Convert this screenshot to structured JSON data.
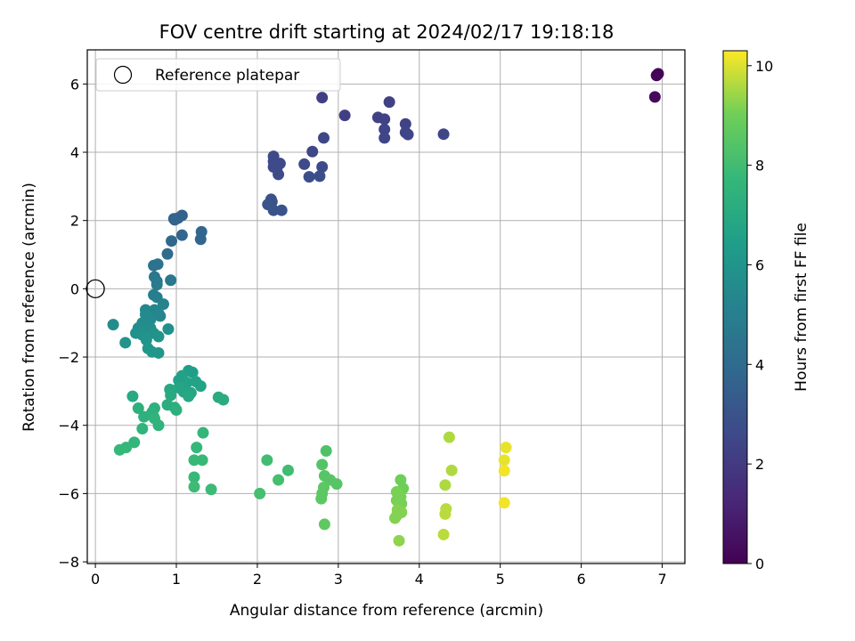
{
  "chart_data": {
    "type": "scatter",
    "title": "FOV centre drift starting at 2024/02/17 19:18:18",
    "xlabel": "Angular distance from reference (arcmin)",
    "ylabel": "Rotation from reference (arcmin)",
    "xlim": [
      -0.1,
      7.28
    ],
    "ylim": [
      -8.05,
      7.0
    ],
    "xticks": [
      0,
      1,
      2,
      3,
      4,
      5,
      6,
      7
    ],
    "yticks": [
      -8,
      -6,
      -4,
      -2,
      0,
      2,
      4,
      6
    ],
    "grid": true,
    "legend": {
      "position": "top-left",
      "entries": [
        "Reference platepar"
      ]
    },
    "reference_point": {
      "label": "Reference platepar",
      "x": 0,
      "y": 0
    },
    "colorbar": {
      "label": "Hours from first FF file",
      "range": [
        0,
        10.3
      ],
      "ticks": [
        0,
        2,
        4,
        6,
        8,
        10
      ],
      "colormap": "viridis"
    },
    "points": [
      {
        "x": 6.95,
        "y": 6.3,
        "h": 0.05
      },
      {
        "x": 6.93,
        "y": 6.25,
        "h": 0.1
      },
      {
        "x": 6.91,
        "y": 5.62,
        "h": 0.3
      },
      {
        "x": 2.8,
        "y": 5.6,
        "h": 2.2
      },
      {
        "x": 3.63,
        "y": 5.47,
        "h": 2.3
      },
      {
        "x": 3.08,
        "y": 5.08,
        "h": 2.2
      },
      {
        "x": 3.49,
        "y": 5.02,
        "h": 2.3
      },
      {
        "x": 3.57,
        "y": 4.97,
        "h": 2.3
      },
      {
        "x": 3.83,
        "y": 4.83,
        "h": 2.3
      },
      {
        "x": 3.57,
        "y": 4.67,
        "h": 2.4
      },
      {
        "x": 3.83,
        "y": 4.58,
        "h": 2.4
      },
      {
        "x": 3.86,
        "y": 4.52,
        "h": 2.4
      },
      {
        "x": 3.57,
        "y": 4.42,
        "h": 2.4
      },
      {
        "x": 4.3,
        "y": 4.53,
        "h": 2.4
      },
      {
        "x": 2.82,
        "y": 4.42,
        "h": 2.5
      },
      {
        "x": 2.68,
        "y": 4.02,
        "h": 2.5
      },
      {
        "x": 2.2,
        "y": 3.88,
        "h": 2.6
      },
      {
        "x": 2.2,
        "y": 3.73,
        "h": 2.6
      },
      {
        "x": 2.28,
        "y": 3.67,
        "h": 2.6
      },
      {
        "x": 2.58,
        "y": 3.65,
        "h": 2.6
      },
      {
        "x": 2.2,
        "y": 3.57,
        "h": 2.6
      },
      {
        "x": 2.8,
        "y": 3.57,
        "h": 2.7
      },
      {
        "x": 2.24,
        "y": 3.52,
        "h": 2.7
      },
      {
        "x": 2.26,
        "y": 3.35,
        "h": 2.7
      },
      {
        "x": 2.64,
        "y": 3.28,
        "h": 2.8
      },
      {
        "x": 2.77,
        "y": 3.3,
        "h": 2.8
      },
      {
        "x": 2.17,
        "y": 2.62,
        "h": 2.9
      },
      {
        "x": 2.18,
        "y": 2.55,
        "h": 2.9
      },
      {
        "x": 2.13,
        "y": 2.47,
        "h": 3.0
      },
      {
        "x": 2.2,
        "y": 2.3,
        "h": 3.0
      },
      {
        "x": 2.3,
        "y": 2.3,
        "h": 3.0
      },
      {
        "x": 1.07,
        "y": 2.15,
        "h": 3.6
      },
      {
        "x": 0.97,
        "y": 2.05,
        "h": 3.7
      },
      {
        "x": 1.02,
        "y": 2.07,
        "h": 3.7
      },
      {
        "x": 0.98,
        "y": 2.02,
        "h": 3.7
      },
      {
        "x": 1.31,
        "y": 1.67,
        "h": 3.8
      },
      {
        "x": 1.07,
        "y": 1.57,
        "h": 3.8
      },
      {
        "x": 1.3,
        "y": 1.45,
        "h": 3.8
      },
      {
        "x": 0.94,
        "y": 1.4,
        "h": 3.9
      },
      {
        "x": 0.89,
        "y": 1.02,
        "h": 4.0
      },
      {
        "x": 0.77,
        "y": 0.72,
        "h": 4.4
      },
      {
        "x": 0.72,
        "y": 0.68,
        "h": 4.4
      },
      {
        "x": 0.73,
        "y": 0.35,
        "h": 4.6
      },
      {
        "x": 0.93,
        "y": 0.25,
        "h": 4.6
      },
      {
        "x": 0.76,
        "y": 0.22,
        "h": 4.7
      },
      {
        "x": 0.76,
        "y": 0.12,
        "h": 4.8
      },
      {
        "x": 0.72,
        "y": -0.18,
        "h": 5.0
      },
      {
        "x": 0.76,
        "y": -0.25,
        "h": 5.0
      },
      {
        "x": 0.84,
        "y": -0.45,
        "h": 5.2
      },
      {
        "x": 0.62,
        "y": -0.62,
        "h": 5.3
      },
      {
        "x": 0.73,
        "y": -0.62,
        "h": 5.3
      },
      {
        "x": 0.78,
        "y": -0.72,
        "h": 5.4
      },
      {
        "x": 0.8,
        "y": -0.8,
        "h": 5.4
      },
      {
        "x": 0.62,
        "y": -0.75,
        "h": 5.5
      },
      {
        "x": 0.68,
        "y": -0.9,
        "h": 5.5
      },
      {
        "x": 0.22,
        "y": -1.05,
        "h": 5.6
      },
      {
        "x": 0.58,
        "y": -1.0,
        "h": 5.6
      },
      {
        "x": 0.53,
        "y": -1.15,
        "h": 5.7
      },
      {
        "x": 0.6,
        "y": -1.2,
        "h": 5.7
      },
      {
        "x": 0.68,
        "y": -1.15,
        "h": 5.7
      },
      {
        "x": 0.9,
        "y": -1.18,
        "h": 5.8
      },
      {
        "x": 0.5,
        "y": -1.3,
        "h": 5.8
      },
      {
        "x": 0.58,
        "y": -1.35,
        "h": 5.9
      },
      {
        "x": 0.72,
        "y": -1.3,
        "h": 5.9
      },
      {
        "x": 0.78,
        "y": -1.4,
        "h": 5.9
      },
      {
        "x": 0.63,
        "y": -1.5,
        "h": 6.0
      },
      {
        "x": 0.37,
        "y": -1.58,
        "h": 6.0
      },
      {
        "x": 0.65,
        "y": -1.75,
        "h": 6.1
      },
      {
        "x": 0.7,
        "y": -1.85,
        "h": 6.1
      },
      {
        "x": 0.78,
        "y": -1.88,
        "h": 6.1
      },
      {
        "x": 1.15,
        "y": -2.4,
        "h": 6.5
      },
      {
        "x": 1.2,
        "y": -2.45,
        "h": 6.5
      },
      {
        "x": 1.07,
        "y": -2.55,
        "h": 6.6
      },
      {
        "x": 1.03,
        "y": -2.68,
        "h": 6.6
      },
      {
        "x": 1.13,
        "y": -2.75,
        "h": 6.7
      },
      {
        "x": 1.24,
        "y": -2.72,
        "h": 6.7
      },
      {
        "x": 1.3,
        "y": -2.85,
        "h": 6.7
      },
      {
        "x": 1.03,
        "y": -2.9,
        "h": 6.8
      },
      {
        "x": 1.09,
        "y": -3.02,
        "h": 6.8
      },
      {
        "x": 1.18,
        "y": -3.05,
        "h": 6.8
      },
      {
        "x": 0.92,
        "y": -2.95,
        "h": 6.9
      },
      {
        "x": 1.15,
        "y": -3.15,
        "h": 6.9
      },
      {
        "x": 0.93,
        "y": -3.12,
        "h": 7.0
      },
      {
        "x": 0.46,
        "y": -3.15,
        "h": 7.0
      },
      {
        "x": 1.52,
        "y": -3.18,
        "h": 7.1
      },
      {
        "x": 1.58,
        "y": -3.25,
        "h": 7.1
      },
      {
        "x": 0.89,
        "y": -3.4,
        "h": 7.2
      },
      {
        "x": 0.98,
        "y": -3.48,
        "h": 7.2
      },
      {
        "x": 0.73,
        "y": -3.5,
        "h": 7.3
      },
      {
        "x": 1.0,
        "y": -3.55,
        "h": 7.3
      },
      {
        "x": 0.53,
        "y": -3.5,
        "h": 7.3
      },
      {
        "x": 0.7,
        "y": -3.62,
        "h": 7.4
      },
      {
        "x": 0.6,
        "y": -3.75,
        "h": 7.4
      },
      {
        "x": 0.72,
        "y": -3.75,
        "h": 7.4
      },
      {
        "x": 0.73,
        "y": -3.8,
        "h": 7.5
      },
      {
        "x": 0.78,
        "y": -4.0,
        "h": 7.5
      },
      {
        "x": 0.58,
        "y": -4.1,
        "h": 7.5
      },
      {
        "x": 1.33,
        "y": -4.22,
        "h": 7.6
      },
      {
        "x": 0.48,
        "y": -4.5,
        "h": 7.6
      },
      {
        "x": 0.38,
        "y": -4.65,
        "h": 7.7
      },
      {
        "x": 0.3,
        "y": -4.72,
        "h": 7.7
      },
      {
        "x": 1.25,
        "y": -4.65,
        "h": 7.7
      },
      {
        "x": 1.22,
        "y": -5.02,
        "h": 7.8
      },
      {
        "x": 1.32,
        "y": -5.02,
        "h": 7.8
      },
      {
        "x": 1.22,
        "y": -5.52,
        "h": 7.8
      },
      {
        "x": 1.22,
        "y": -5.8,
        "h": 7.9
      },
      {
        "x": 1.43,
        "y": -5.88,
        "h": 7.9
      },
      {
        "x": 2.12,
        "y": -5.02,
        "h": 8.0
      },
      {
        "x": 2.38,
        "y": -5.32,
        "h": 8.0
      },
      {
        "x": 2.26,
        "y": -5.6,
        "h": 8.1
      },
      {
        "x": 2.03,
        "y": -6.0,
        "h": 8.1
      },
      {
        "x": 2.85,
        "y": -4.75,
        "h": 8.3
      },
      {
        "x": 2.8,
        "y": -5.15,
        "h": 8.4
      },
      {
        "x": 2.83,
        "y": -5.48,
        "h": 8.5
      },
      {
        "x": 2.9,
        "y": -5.6,
        "h": 8.5
      },
      {
        "x": 2.98,
        "y": -5.72,
        "h": 8.5
      },
      {
        "x": 2.82,
        "y": -5.82,
        "h": 8.6
      },
      {
        "x": 2.8,
        "y": -6.0,
        "h": 8.6
      },
      {
        "x": 2.79,
        "y": -6.15,
        "h": 8.6
      },
      {
        "x": 2.83,
        "y": -6.9,
        "h": 8.7
      },
      {
        "x": 3.77,
        "y": -5.6,
        "h": 9.0
      },
      {
        "x": 3.8,
        "y": -5.85,
        "h": 9.0
      },
      {
        "x": 3.72,
        "y": -5.95,
        "h": 9.1
      },
      {
        "x": 3.77,
        "y": -6.1,
        "h": 9.1
      },
      {
        "x": 3.72,
        "y": -6.2,
        "h": 9.1
      },
      {
        "x": 3.78,
        "y": -6.3,
        "h": 9.1
      },
      {
        "x": 3.73,
        "y": -6.48,
        "h": 9.2
      },
      {
        "x": 3.78,
        "y": -6.55,
        "h": 9.2
      },
      {
        "x": 3.72,
        "y": -6.65,
        "h": 9.2
      },
      {
        "x": 3.7,
        "y": -6.72,
        "h": 9.2
      },
      {
        "x": 3.75,
        "y": -7.38,
        "h": 9.3
      },
      {
        "x": 4.37,
        "y": -4.35,
        "h": 9.6
      },
      {
        "x": 4.4,
        "y": -5.32,
        "h": 9.6
      },
      {
        "x": 4.32,
        "y": -5.75,
        "h": 9.6
      },
      {
        "x": 4.33,
        "y": -6.45,
        "h": 9.7
      },
      {
        "x": 4.32,
        "y": -6.6,
        "h": 9.7
      },
      {
        "x": 4.3,
        "y": -7.2,
        "h": 9.7
      },
      {
        "x": 5.07,
        "y": -4.65,
        "h": 10.1
      },
      {
        "x": 5.05,
        "y": -5.02,
        "h": 10.1
      },
      {
        "x": 5.05,
        "y": -5.33,
        "h": 10.2
      },
      {
        "x": 5.05,
        "y": -6.27,
        "h": 10.2
      }
    ]
  }
}
